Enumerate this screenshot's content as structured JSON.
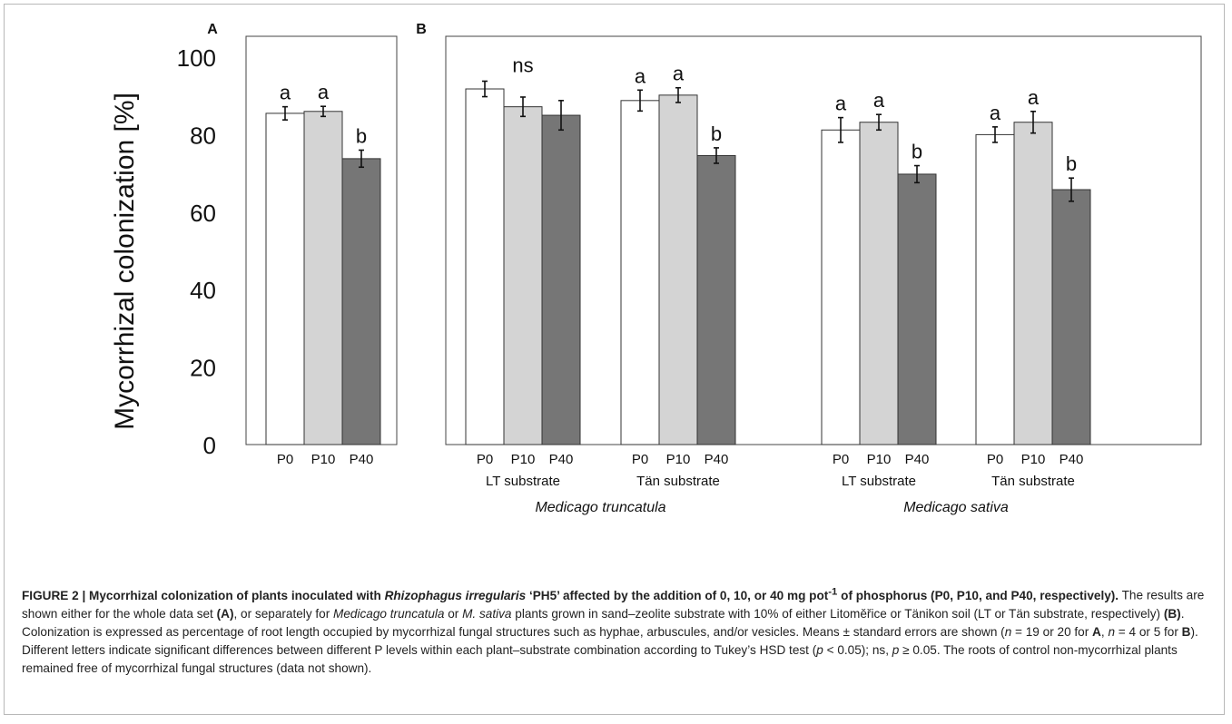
{
  "chart_data": [
    {
      "type": "bar",
      "panel_label": "A",
      "ylabel": "Mycorrhizal colonization [%]",
      "ylim": [
        0,
        100
      ],
      "yticks": [
        0,
        20,
        40,
        60,
        80,
        100
      ],
      "grid": false,
      "categories": [
        "P0",
        "P10",
        "P40"
      ],
      "values": [
        85.5,
        86.0,
        73.8
      ],
      "errors": [
        1.7,
        1.3,
        2.2
      ],
      "letters": [
        "a",
        "a",
        "b"
      ],
      "colors": [
        "#ffffff",
        "#d4d4d4",
        "#767676"
      ]
    },
    {
      "type": "bar",
      "panel_label": "B",
      "ylim": [
        0,
        100
      ],
      "grid": false,
      "categories": [
        "P0",
        "P10",
        "P40"
      ],
      "colors": [
        "#ffffff",
        "#d4d4d4",
        "#767676"
      ],
      "species": [
        {
          "name": "Medicago truncatula",
          "groups": [
            {
              "label": "LT substrate",
              "values": [
                91.8,
                87.2,
                85.0
              ],
              "errors": [
                2.0,
                2.5,
                3.8
              ],
              "letters": [
                "ns"
              ]
            },
            {
              "label": "Tän substrate",
              "values": [
                88.8,
                90.2,
                74.6
              ],
              "errors": [
                2.7,
                1.9,
                2.0
              ],
              "letters": [
                "a",
                "a",
                "b"
              ]
            }
          ]
        },
        {
          "name": "Medicago sativa",
          "groups": [
            {
              "label": "LT substrate",
              "values": [
                81.2,
                83.2,
                69.8
              ],
              "errors": [
                3.2,
                2.0,
                2.2
              ],
              "letters": [
                "a",
                "a",
                "b"
              ]
            },
            {
              "label": "Tän substrate",
              "values": [
                80.0,
                83.2,
                65.8
              ],
              "errors": [
                2.0,
                2.8,
                3.0
              ],
              "letters": [
                "a",
                "a",
                "b"
              ]
            }
          ]
        }
      ]
    }
  ],
  "caption": {
    "p1": "FIGURE 2 | Mycorrhizal colonization of plants inoculated with ",
    "p2": "Rhizophagus irregularis",
    "p3": " ‘PH5’ affected by the addition of 0, 10, or 40 mg pot",
    "p4": "-1",
    "p5": " of phosphorus (P0, P10, and P40, respectively).",
    "p6": " The results are shown either for the whole data set ",
    "p7": "(A)",
    "p8": ", or separately for ",
    "p9": "Medicago truncatula",
    "p10": " or ",
    "p11": "M. sativa",
    "p12": " plants grown in sand–zeolite substrate with 10% of either Litoměřice or Tänikon soil (LT or Tän substrate, respectively) ",
    "p13": "(B)",
    "p14": ". Colonization is expressed as percentage of root length occupied by mycorrhizal fungal structures such as hyphae, arbuscules, and/or vesicles. Means ± standard errors are shown (",
    "p15": "n",
    "p16": " = 19 or 20 for ",
    "p17": "A",
    "p18": ", ",
    "p19": "n",
    "p20": " = 4 or 5 for ",
    "p21": "B",
    "p22": "). Different letters indicate significant differences between different P levels within each plant–substrate combination according to Tukey’s HSD test (",
    "p23": "p",
    "p24": " < 0.05); ns, ",
    "p25": "p",
    "p26": " ≥ 0.05. The roots of control non-mycorrhizal plants remained free of mycorrhizal fungal structures (data not shown)."
  }
}
